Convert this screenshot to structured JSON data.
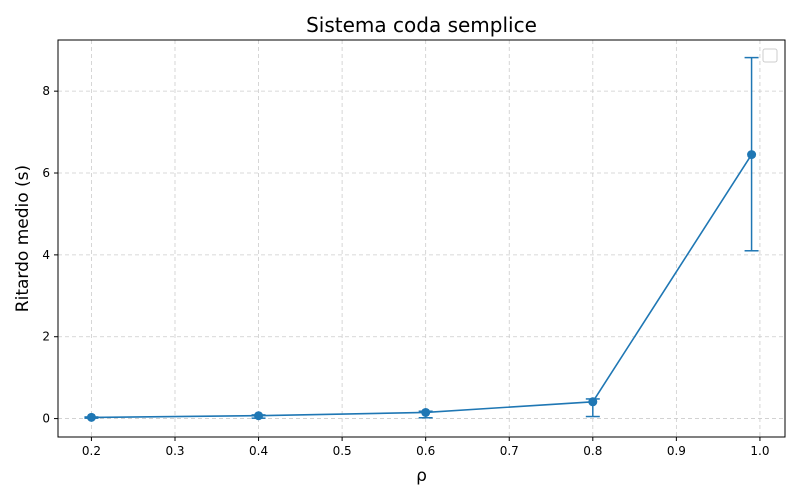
{
  "chart_data": {
    "type": "line",
    "title": "Sistema coda semplice",
    "xlabel": "ρ",
    "ylabel": "Ritardo medio (s)",
    "xlim": [
      0.16,
      1.03
    ],
    "ylim": [
      -0.45,
      9.25
    ],
    "xticks": [
      0.2,
      0.3,
      0.4,
      0.5,
      0.6,
      0.7,
      0.8,
      0.9,
      1.0
    ],
    "xtick_labels": [
      "0.2",
      "0.3",
      "0.4",
      "0.5",
      "0.6",
      "0.7",
      "0.8",
      "0.9",
      "1.0"
    ],
    "yticks": [
      0,
      2,
      4,
      6,
      8
    ],
    "ytick_labels": [
      "0",
      "2",
      "4",
      "6",
      "8"
    ],
    "grid": true,
    "legend": "top-right",
    "series": [
      {
        "color": "#1f77b4",
        "x": [
          0.2,
          0.4,
          0.6,
          0.8,
          0.99
        ],
        "y": [
          0.03,
          0.07,
          0.15,
          0.41,
          6.45
        ],
        "error_low": [
          0.01,
          0.01,
          0.02,
          0.05,
          4.1
        ],
        "error_high": [
          0.04,
          0.09,
          0.18,
          0.48,
          8.82
        ]
      }
    ]
  }
}
